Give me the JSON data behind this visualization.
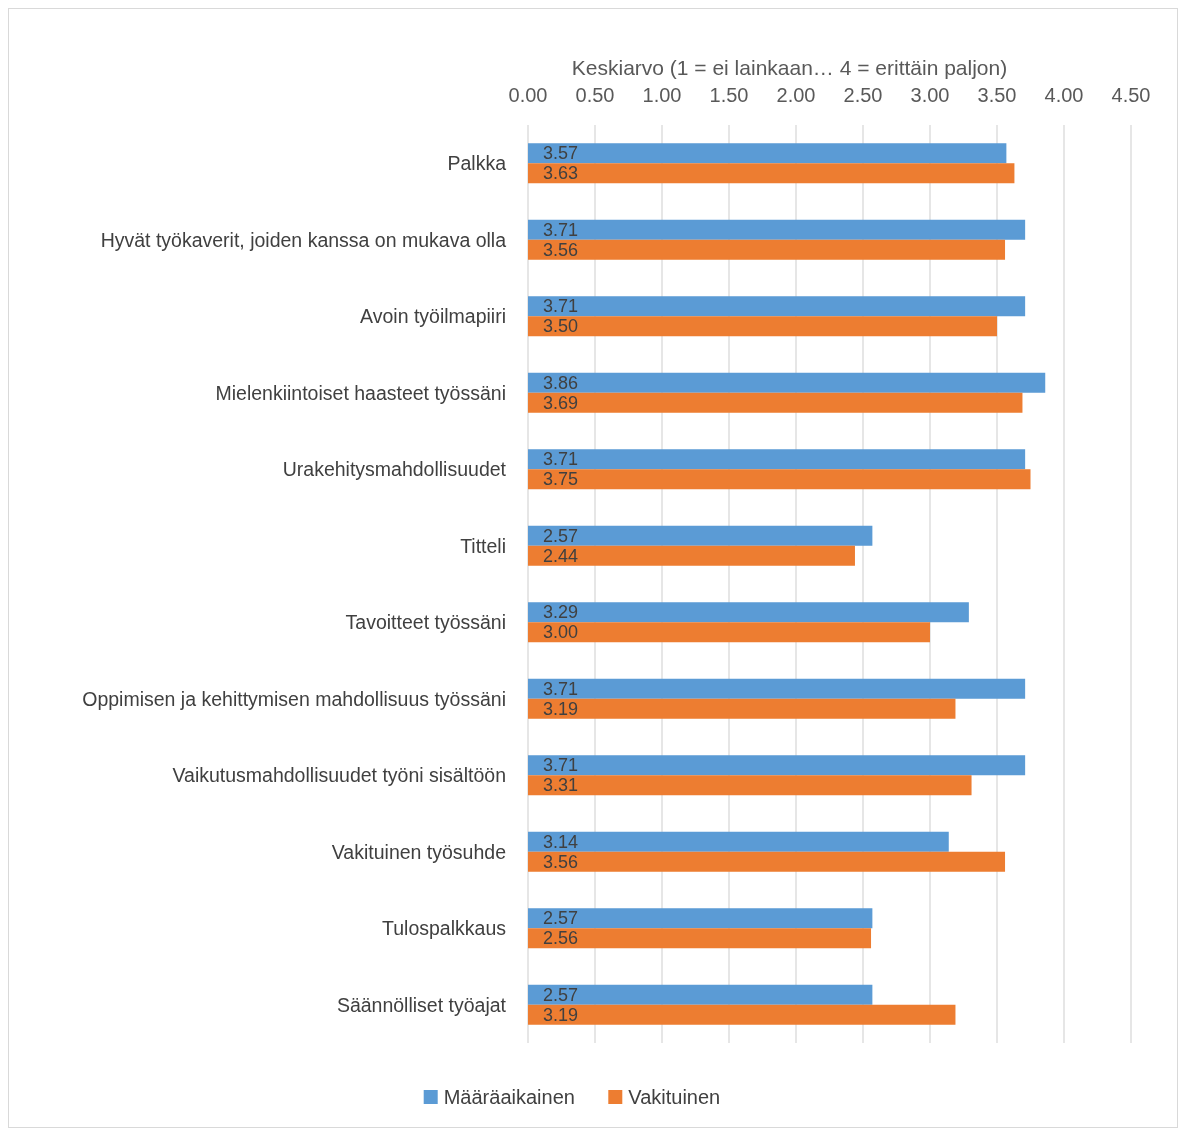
{
  "chart_data": {
    "type": "bar",
    "orientation": "horizontal",
    "xlabel": "Keskiarvo (1 = ei lainkaan… 4 = erittäin paljon)",
    "categories": [
      "Palkka",
      "Hyvät työkaverit, joiden kanssa on mukava olla",
      "Avoin työilmapiiri",
      "Mielenkiintoiset haasteet työssäni",
      "Urakehitysmahdollisuudet",
      "Titteli",
      "Tavoitteet työssäni",
      "Oppimisen ja kehittymisen mahdollisuus työssäni",
      "Vaikutusmahdollisuudet työni sisältöön",
      "Vakituinen työsuhde",
      "Tulospalkkaus",
      "Säännölliset työajat"
    ],
    "series": [
      {
        "name": "Määräaikainen",
        "color": "#5b9bd5",
        "values": [
          3.57,
          3.71,
          3.71,
          3.86,
          3.71,
          2.57,
          3.29,
          3.71,
          3.71,
          3.14,
          2.57,
          2.57
        ],
        "value_labels": [
          "3.57",
          "3.71",
          "3.71",
          "3.86",
          "3.71",
          "2.57",
          "3.29",
          "3.71",
          "3.71",
          "3.14",
          "2.57",
          "2.57"
        ]
      },
      {
        "name": "Vakituinen",
        "color": "#ed7d31",
        "values": [
          3.63,
          3.56,
          3.5,
          3.69,
          3.75,
          2.44,
          3.0,
          3.19,
          3.31,
          3.56,
          2.56,
          3.19
        ],
        "value_labels": [
          "3.63",
          "3.56",
          "3.50",
          "3.69",
          "3.75",
          "2.44",
          "3.00",
          "3.19",
          "3.31",
          "3.56",
          "2.56",
          "3.19"
        ]
      }
    ],
    "xlim": [
      0,
      4.5
    ],
    "xticks": [
      {
        "value": 0,
        "label": "0.00"
      },
      {
        "value": 0.5,
        "label": "0.50"
      },
      {
        "value": 1,
        "label": "1.00"
      },
      {
        "value": 1.5,
        "label": "1.50"
      },
      {
        "value": 2,
        "label": "2.00"
      },
      {
        "value": 2.5,
        "label": "2.50"
      },
      {
        "value": 3,
        "label": "3.00"
      },
      {
        "value": 3.5,
        "label": "3.50"
      },
      {
        "value": 4,
        "label": "4.00"
      },
      {
        "value": 4.5,
        "label": "4.50"
      }
    ],
    "grid": "x",
    "legend": "bottom"
  }
}
